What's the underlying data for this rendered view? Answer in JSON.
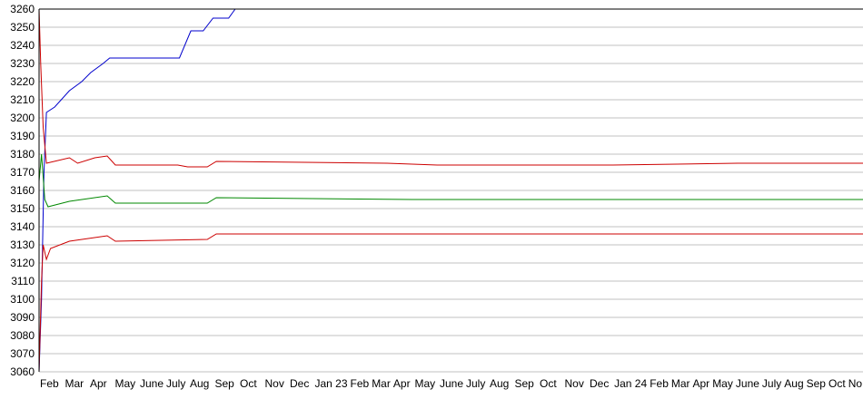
{
  "chart_data": {
    "type": "line",
    "title": "",
    "xlabel": "",
    "ylabel": "",
    "ylim": [
      3060,
      3260
    ],
    "yticks": [
      3060,
      3070,
      3080,
      3090,
      3100,
      3110,
      3120,
      3130,
      3140,
      3150,
      3160,
      3170,
      3180,
      3190,
      3200,
      3210,
      3220,
      3230,
      3240,
      3250,
      3260
    ],
    "grid": true,
    "x_start": "2022-02-01",
    "xtick_labels": [
      "Feb",
      "Mar",
      "Apr",
      "May",
      "June",
      "July",
      "Aug",
      "Sep",
      "Oct",
      "Nov",
      "Dec",
      "Jan 23",
      "Feb",
      "Mar",
      "Apr",
      "May",
      "June",
      "July",
      "Aug",
      "Sep",
      "Oct",
      "Nov",
      "Dec",
      "Jan 24",
      "Feb",
      "Mar",
      "Apr",
      "May",
      "June",
      "July",
      "Aug",
      "Sep",
      "Oct",
      "No"
    ],
    "series": [
      {
        "color": "#0000cc",
        "points": [
          [
            "2022-02-01",
            3060
          ],
          [
            "2022-02-04",
            3100
          ],
          [
            "2022-02-07",
            3170
          ],
          [
            "2022-02-10",
            3203
          ],
          [
            "2022-02-20",
            3206
          ],
          [
            "2022-03-10",
            3215
          ],
          [
            "2022-03-25",
            3220
          ],
          [
            "2022-04-05",
            3225
          ],
          [
            "2022-04-20",
            3230
          ],
          [
            "2022-04-28",
            3233
          ],
          [
            "2022-07-22",
            3233
          ],
          [
            "2022-08-05",
            3248
          ],
          [
            "2022-08-20",
            3248
          ],
          [
            "2022-09-01",
            3255
          ],
          [
            "2022-09-20",
            3255
          ],
          [
            "2022-09-28",
            3260
          ],
          [
            "2024-11-30",
            3260
          ]
        ]
      },
      {
        "color": "#cc0000",
        "points": [
          [
            "2022-02-01",
            3260
          ],
          [
            "2022-02-03",
            3230
          ],
          [
            "2022-02-06",
            3195
          ],
          [
            "2022-02-10",
            3175
          ],
          [
            "2022-03-10",
            3178
          ],
          [
            "2022-03-20",
            3175
          ],
          [
            "2022-04-10",
            3178
          ],
          [
            "2022-04-25",
            3179
          ],
          [
            "2022-05-05",
            3174
          ],
          [
            "2022-07-20",
            3174
          ],
          [
            "2022-08-01",
            3173
          ],
          [
            "2022-08-25",
            3173
          ],
          [
            "2022-09-05",
            3176
          ],
          [
            "2023-04-01",
            3175
          ],
          [
            "2023-06-01",
            3174
          ],
          [
            "2024-01-01",
            3174
          ],
          [
            "2024-06-01",
            3175
          ],
          [
            "2024-11-30",
            3175
          ]
        ]
      },
      {
        "color": "#008800",
        "points": [
          [
            "2022-02-01",
            3165
          ],
          [
            "2022-02-04",
            3180
          ],
          [
            "2022-02-08",
            3155
          ],
          [
            "2022-02-12",
            3151
          ],
          [
            "2022-03-10",
            3154
          ],
          [
            "2022-04-25",
            3157
          ],
          [
            "2022-05-05",
            3153
          ],
          [
            "2022-08-25",
            3153
          ],
          [
            "2022-09-05",
            3156
          ],
          [
            "2023-05-01",
            3155
          ],
          [
            "2024-11-30",
            3155
          ]
        ]
      },
      {
        "color": "#cc0000",
        "points": [
          [
            "2022-02-01",
            3060
          ],
          [
            "2022-02-04",
            3110
          ],
          [
            "2022-02-06",
            3130
          ],
          [
            "2022-02-10",
            3122
          ],
          [
            "2022-02-15",
            3128
          ],
          [
            "2022-03-10",
            3132
          ],
          [
            "2022-04-25",
            3135
          ],
          [
            "2022-05-05",
            3132
          ],
          [
            "2022-08-25",
            3133
          ],
          [
            "2022-09-05",
            3136
          ],
          [
            "2024-11-30",
            3136
          ]
        ]
      }
    ]
  }
}
